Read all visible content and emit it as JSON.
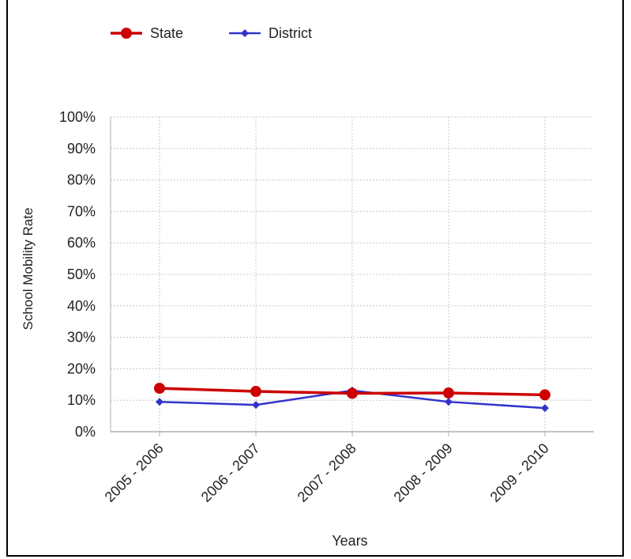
{
  "chart_data": {
    "type": "line",
    "title": "",
    "xlabel": "Years",
    "ylabel": "School Mobility Rate",
    "categories": [
      "2005 - 2006",
      "2006 - 2007",
      "2007 - 2008",
      "2008 - 2009",
      "2009 - 2010"
    ],
    "ylim": [
      0,
      100
    ],
    "yticks": [
      "0%",
      "10%",
      "20%",
      "30%",
      "40%",
      "50%",
      "60%",
      "70%",
      "80%",
      "90%",
      "100%"
    ],
    "grid": true,
    "legend_position": "top-left",
    "series": [
      {
        "name": "State",
        "values": [
          13.8,
          12.8,
          12.2,
          12.3,
          11.7
        ],
        "color": "#cc0000",
        "marker": "circle"
      },
      {
        "name": "District",
        "values": [
          9.5,
          8.5,
          13.1,
          9.5,
          7.5
        ],
        "color": "#3333cc",
        "marker": "diamond"
      }
    ]
  }
}
